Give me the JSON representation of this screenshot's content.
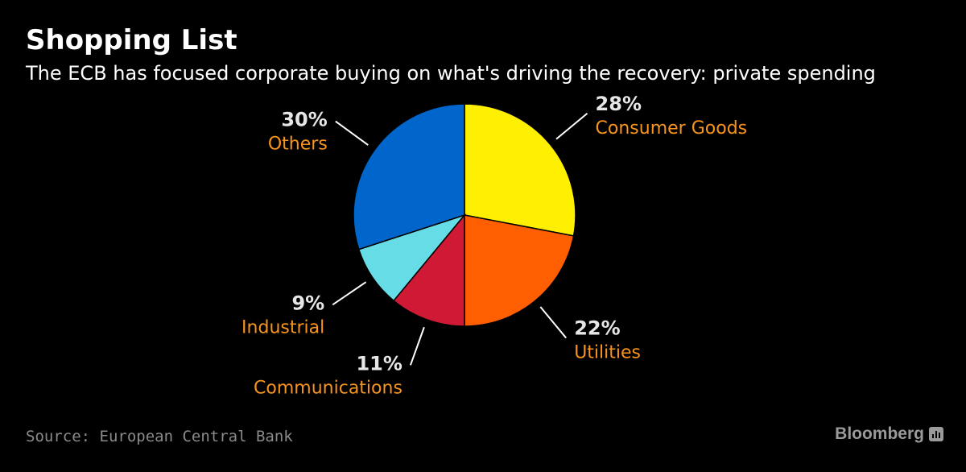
{
  "header": {
    "title": "Shopping List",
    "subtitle": "The ECB has focused corporate buying on what's driving the recovery: private spending"
  },
  "footer": {
    "source": "Source: European Central Bank",
    "brand": "Bloomberg"
  },
  "chart_data": {
    "type": "pie",
    "title": "Shopping List",
    "subtitle": "The ECB has focused corporate buying on what's driving the recovery: private spending",
    "slices": [
      {
        "name": "Consumer Goods",
        "value": 28,
        "percent_label": "28%",
        "color": "#ffef00",
        "label_side": "right"
      },
      {
        "name": "Utilities",
        "value": 22,
        "percent_label": "22%",
        "color": "#ff5f00",
        "label_side": "right"
      },
      {
        "name": "Communications",
        "value": 11,
        "percent_label": "11%",
        "color": "#d01a35",
        "label_side": "left"
      },
      {
        "name": "Industrial",
        "value": 9,
        "percent_label": "9%",
        "color": "#66dce6",
        "label_side": "left"
      },
      {
        "name": "Others",
        "value": 30,
        "percent_label": "30%",
        "color": "#0066cc",
        "label_side": "left"
      }
    ],
    "start": "12 o'clock",
    "direction": "clockwise"
  },
  "colors": {
    "background": "#000000",
    "category_label": "#f7941d",
    "percent_label": "#e6e6e6",
    "leader_line": "#ffffff",
    "source": "#8a8a8a"
  }
}
